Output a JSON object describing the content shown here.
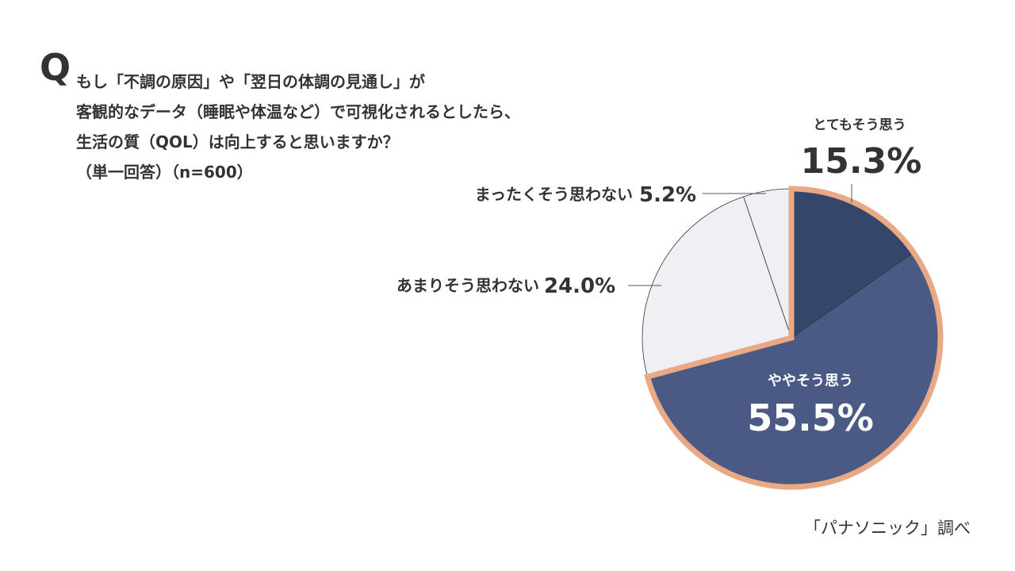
{
  "question": {
    "mark": "Q",
    "lines": [
      "もし「不調の原因」や「翌日の体調の見通し」が",
      "客観的なデータ（睡眠や体温など）で可視化されるとしたら、",
      "生活の質（QOL）は向上すると思いますか？",
      "（単一回答）（n=600）"
    ]
  },
  "source": "「パナソニック」調べ",
  "chart_data": {
    "type": "pie",
    "title": "",
    "slices": [
      {
        "label": "とてもそう思う",
        "value": 15.3,
        "value_label": "15.3%",
        "color": "#34466a"
      },
      {
        "label": "ややそう思う",
        "value": 55.5,
        "value_label": "55.5%",
        "color": "#4a5a84"
      },
      {
        "label": "あまりそう思わない",
        "value": 24.0,
        "value_label": "24.0%",
        "color": "#f0f0f4"
      },
      {
        "label": "まったくそう思わない",
        "value": 5.2,
        "value_label": "5.2%",
        "color": "#f0f0f4"
      }
    ],
    "highlight_color": "#e9a985",
    "highlighted_slices": [
      "とてもそう思う",
      "ややそう思う"
    ]
  }
}
